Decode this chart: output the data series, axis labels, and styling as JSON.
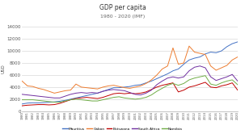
{
  "title": "GDP per capita",
  "subtitle": "1980 - 2020 (IMF)",
  "ylabel": "USD",
  "ylim": [
    0,
    14000
  ],
  "yticks": [
    0,
    2000,
    4000,
    6000,
    8000,
    10000,
    12000,
    14000
  ],
  "years": [
    1980,
    1981,
    1982,
    1983,
    1984,
    1985,
    1986,
    1987,
    1988,
    1989,
    1990,
    1991,
    1992,
    1993,
    1994,
    1995,
    1996,
    1997,
    1998,
    1999,
    2000,
    2001,
    2002,
    2003,
    2004,
    2005,
    2006,
    2007,
    2008,
    2009,
    2010,
    2011,
    2012,
    2013,
    2014,
    2015,
    2016,
    2017,
    2018,
    2019,
    2020
  ],
  "series": {
    "Mauritius": [
      1200,
      1350,
      1400,
      1380,
      1420,
      1480,
      1550,
      1650,
      1800,
      2000,
      2200,
      2400,
      2600,
      2800,
      3000,
      3300,
      3600,
      3900,
      3900,
      4000,
      4100,
      4300,
      4400,
      4700,
      5000,
      5400,
      5800,
      6200,
      6700,
      7000,
      7800,
      8500,
      8800,
      9000,
      9500,
      9800,
      9700,
      10000,
      10700,
      11200,
      11500
    ],
    "Gabon": [
      5000,
      4200,
      4100,
      3800,
      3600,
      3300,
      3000,
      3200,
      3400,
      3500,
      4500,
      4000,
      3900,
      3800,
      3700,
      4000,
      4200,
      4300,
      4100,
      3900,
      3800,
      4000,
      4200,
      4600,
      5200,
      6000,
      7000,
      7500,
      10500,
      7800,
      8000,
      10800,
      9800,
      9600,
      9400,
      7500,
      6800,
      7200,
      7600,
      8500,
      9000
    ],
    "Botswana": [
      900,
      1000,
      1050,
      1100,
      1100,
      1050,
      1100,
      1300,
      1600,
      1900,
      2100,
      2200,
      2300,
      2200,
      2100,
      2300,
      2600,
      2900,
      3000,
      2900,
      3000,
      2900,
      3000,
      3200,
      3600,
      4000,
      4300,
      4500,
      4700,
      3200,
      3500,
      4000,
      4200,
      4500,
      4800,
      4000,
      3900,
      4200,
      4400,
      4700,
      3500
    ],
    "South Africa": [
      2800,
      2700,
      2600,
      2500,
      2400,
      2300,
      2200,
      2200,
      2500,
      2800,
      3000,
      3100,
      3000,
      3100,
      3000,
      3300,
      3500,
      3600,
      3500,
      3400,
      3100,
      2800,
      2700,
      3000,
      3500,
      4400,
      5000,
      5500,
      5700,
      5500,
      5700,
      6700,
      7300,
      7500,
      7200,
      5700,
      5100,
      5400,
      5700,
      6100,
      5000
    ],
    "Namibia": [
      1900,
      1900,
      1900,
      1800,
      1700,
      1600,
      1500,
      1500,
      1700,
      1900,
      2000,
      1900,
      1800,
      1700,
      1700,
      1900,
      2100,
      2300,
      2400,
      2200,
      2100,
      2000,
      2100,
      2300,
      2700,
      3300,
      3800,
      4300,
      4600,
      4300,
      4600,
      5200,
      5500,
      5700,
      5900,
      4500,
      4300,
      4700,
      5000,
      5200,
      4400
    ]
  },
  "colors": {
    "Mauritius": "#4472c4",
    "Gabon": "#ed7d31",
    "Botswana": "#c00000",
    "South Africa": "#7030a0",
    "Namibia": "#70ad47"
  },
  "legend_order": [
    "Mauritius",
    "Gabon",
    "Botswana",
    "South Africa",
    "Namibia"
  ],
  "background_color": "#ffffff",
  "grid_color": "#d9d9d9"
}
